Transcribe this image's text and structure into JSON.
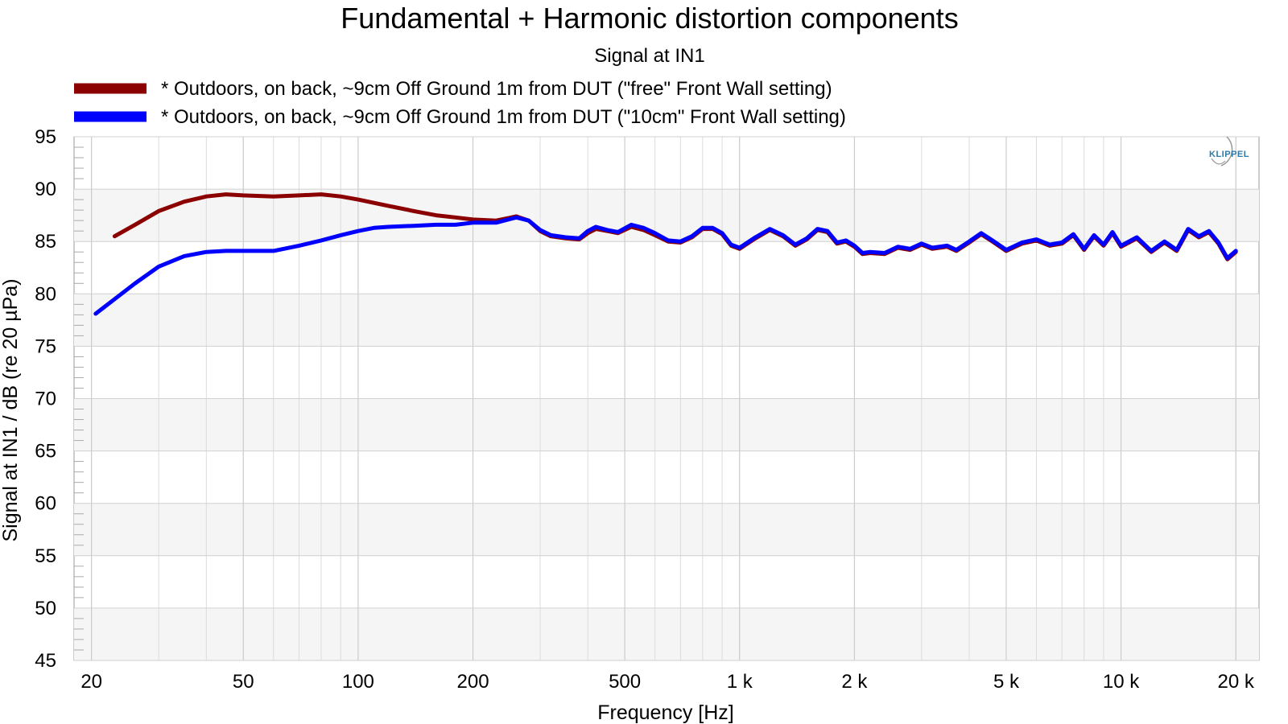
{
  "chart_data": {
    "type": "line",
    "title": "Fundamental + Harmonic distortion components",
    "subtitle": "Signal at IN1",
    "xlabel": "Frequency [Hz]",
    "ylabel": "Signal at IN1 / dB (re 20 µPa)",
    "x_scale": "log",
    "xlim": [
      18,
      23000
    ],
    "ylim": [
      45,
      95
    ],
    "x_ticks": [
      {
        "value": 20,
        "label": "20"
      },
      {
        "value": 50,
        "label": "50"
      },
      {
        "value": 100,
        "label": "100"
      },
      {
        "value": 200,
        "label": "200"
      },
      {
        "value": 500,
        "label": "500"
      },
      {
        "value": 1000,
        "label": "1 k"
      },
      {
        "value": 2000,
        "label": "2 k"
      },
      {
        "value": 5000,
        "label": "5 k"
      },
      {
        "value": 10000,
        "label": "10 k"
      },
      {
        "value": 20000,
        "label": "20 k"
      }
    ],
    "y_ticks": [
      95,
      90,
      85,
      80,
      75,
      70,
      65,
      60,
      55,
      50,
      45
    ],
    "grid": true,
    "legend_position": "top-left",
    "watermark": "KLIPPEL",
    "series": [
      {
        "name": "* Outdoors, on back, ~9cm Off Ground 1m from DUT (\"free\" Front Wall setting)",
        "color": "#8b0000",
        "points": [
          [
            23,
            85.5
          ],
          [
            26,
            86.6
          ],
          [
            30,
            87.9
          ],
          [
            35,
            88.8
          ],
          [
            40,
            89.3
          ],
          [
            45,
            89.5
          ],
          [
            50,
            89.4
          ],
          [
            60,
            89.3
          ],
          [
            70,
            89.4
          ],
          [
            80,
            89.5
          ],
          [
            90,
            89.3
          ],
          [
            100,
            89.0
          ],
          [
            120,
            88.4
          ],
          [
            140,
            87.9
          ],
          [
            160,
            87.5
          ],
          [
            180,
            87.3
          ],
          [
            200,
            87.1
          ],
          [
            230,
            87.0
          ],
          [
            260,
            87.4
          ],
          [
            280,
            87.0
          ],
          [
            300,
            86.0
          ],
          [
            320,
            85.5
          ],
          [
            350,
            85.3
          ],
          [
            380,
            85.2
          ],
          [
            400,
            85.8
          ],
          [
            420,
            86.2
          ],
          [
            450,
            86.0
          ],
          [
            480,
            85.8
          ],
          [
            520,
            86.4
          ],
          [
            560,
            86.1
          ],
          [
            600,
            85.6
          ],
          [
            650,
            85.0
          ],
          [
            700,
            84.9
          ],
          [
            750,
            85.4
          ],
          [
            800,
            86.2
          ],
          [
            850,
            86.2
          ],
          [
            900,
            85.7
          ],
          [
            950,
            84.6
          ],
          [
            1000,
            84.3
          ],
          [
            1100,
            85.3
          ],
          [
            1200,
            86.1
          ],
          [
            1300,
            85.5
          ],
          [
            1400,
            84.6
          ],
          [
            1500,
            85.2
          ],
          [
            1600,
            86.1
          ],
          [
            1700,
            85.9
          ],
          [
            1800,
            84.8
          ],
          [
            1900,
            85.0
          ],
          [
            2000,
            84.5
          ],
          [
            2100,
            83.8
          ],
          [
            2200,
            83.9
          ],
          [
            2400,
            83.8
          ],
          [
            2600,
            84.4
          ],
          [
            2800,
            84.2
          ],
          [
            3000,
            84.7
          ],
          [
            3200,
            84.3
          ],
          [
            3500,
            84.5
          ],
          [
            3700,
            84.1
          ],
          [
            4000,
            84.9
          ],
          [
            4300,
            85.7
          ],
          [
            4600,
            85.0
          ],
          [
            5000,
            84.1
          ],
          [
            5500,
            84.8
          ],
          [
            6000,
            85.1
          ],
          [
            6500,
            84.6
          ],
          [
            7000,
            84.8
          ],
          [
            7500,
            85.6
          ],
          [
            8000,
            84.2
          ],
          [
            8500,
            85.5
          ],
          [
            9000,
            84.6
          ],
          [
            9500,
            85.8
          ],
          [
            10000,
            84.5
          ],
          [
            11000,
            85.3
          ],
          [
            12000,
            84.0
          ],
          [
            13000,
            84.9
          ],
          [
            14000,
            84.1
          ],
          [
            15000,
            86.1
          ],
          [
            16000,
            85.4
          ],
          [
            17000,
            85.9
          ],
          [
            18000,
            84.8
          ],
          [
            19000,
            83.3
          ],
          [
            20000,
            84.0
          ]
        ]
      },
      {
        "name": "* Outdoors, on back, ~9cm Off Ground 1m from DUT (\"10cm\" Front Wall setting)",
        "color": "#0000ff",
        "points": [
          [
            20.5,
            78.1
          ],
          [
            23,
            79.5
          ],
          [
            26,
            81.0
          ],
          [
            30,
            82.6
          ],
          [
            35,
            83.6
          ],
          [
            40,
            84.0
          ],
          [
            45,
            84.1
          ],
          [
            50,
            84.1
          ],
          [
            60,
            84.1
          ],
          [
            70,
            84.6
          ],
          [
            80,
            85.1
          ],
          [
            90,
            85.6
          ],
          [
            100,
            86.0
          ],
          [
            110,
            86.3
          ],
          [
            120,
            86.4
          ],
          [
            140,
            86.5
          ],
          [
            160,
            86.6
          ],
          [
            180,
            86.6
          ],
          [
            200,
            86.8
          ],
          [
            230,
            86.8
          ],
          [
            260,
            87.3
          ],
          [
            280,
            87.0
          ],
          [
            300,
            86.1
          ],
          [
            320,
            85.6
          ],
          [
            350,
            85.4
          ],
          [
            380,
            85.3
          ],
          [
            400,
            86.0
          ],
          [
            420,
            86.4
          ],
          [
            450,
            86.1
          ],
          [
            480,
            85.9
          ],
          [
            520,
            86.6
          ],
          [
            560,
            86.3
          ],
          [
            600,
            85.8
          ],
          [
            650,
            85.1
          ],
          [
            700,
            85.0
          ],
          [
            750,
            85.5
          ],
          [
            800,
            86.3
          ],
          [
            850,
            86.3
          ],
          [
            900,
            85.8
          ],
          [
            950,
            84.7
          ],
          [
            1000,
            84.4
          ],
          [
            1100,
            85.4
          ],
          [
            1200,
            86.2
          ],
          [
            1300,
            85.6
          ],
          [
            1400,
            84.7
          ],
          [
            1500,
            85.3
          ],
          [
            1600,
            86.2
          ],
          [
            1700,
            86.0
          ],
          [
            1800,
            84.9
          ],
          [
            1900,
            85.1
          ],
          [
            2000,
            84.6
          ],
          [
            2100,
            83.9
          ],
          [
            2200,
            84.0
          ],
          [
            2400,
            83.9
          ],
          [
            2600,
            84.5
          ],
          [
            2800,
            84.3
          ],
          [
            3000,
            84.8
          ],
          [
            3200,
            84.4
          ],
          [
            3500,
            84.6
          ],
          [
            3700,
            84.2
          ],
          [
            4000,
            85.0
          ],
          [
            4300,
            85.8
          ],
          [
            4600,
            85.1
          ],
          [
            5000,
            84.2
          ],
          [
            5500,
            84.9
          ],
          [
            6000,
            85.2
          ],
          [
            6500,
            84.7
          ],
          [
            7000,
            84.9
          ],
          [
            7500,
            85.7
          ],
          [
            8000,
            84.3
          ],
          [
            8500,
            85.6
          ],
          [
            9000,
            84.7
          ],
          [
            9500,
            85.9
          ],
          [
            10000,
            84.6
          ],
          [
            11000,
            85.4
          ],
          [
            12000,
            84.1
          ],
          [
            13000,
            85.0
          ],
          [
            14000,
            84.2
          ],
          [
            15000,
            86.2
          ],
          [
            16000,
            85.5
          ],
          [
            17000,
            86.0
          ],
          [
            18000,
            84.9
          ],
          [
            19000,
            83.4
          ],
          [
            20000,
            84.1
          ]
        ]
      }
    ]
  }
}
